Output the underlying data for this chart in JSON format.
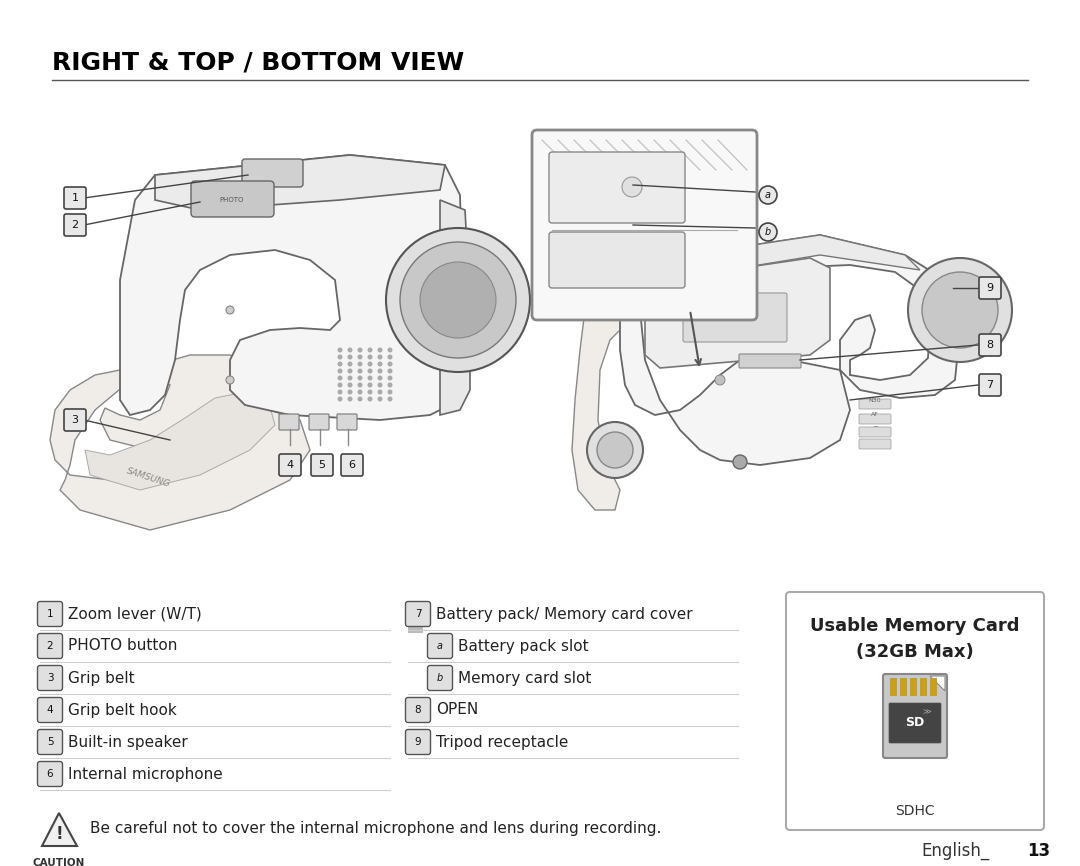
{
  "title": "RIGHT & TOP / BOTTOM VIEW",
  "bg_color": "#ffffff",
  "title_color": "#000000",
  "title_fontsize": 18,
  "left_items": [
    {
      "num": "1",
      "text": "Zoom lever (W/T)"
    },
    {
      "num": "2",
      "text": "PHOTO button"
    },
    {
      "num": "3",
      "text": "Grip belt"
    },
    {
      "num": "4",
      "text": "Grip belt hook"
    },
    {
      "num": "5",
      "text": "Built-in speaker"
    },
    {
      "num": "6",
      "text": "Internal microphone"
    }
  ],
  "right_items": [
    {
      "num": "7",
      "text": "Battery pack/ Memory card cover",
      "indent": false
    },
    {
      "num": "a",
      "text": "Battery pack slot",
      "indent": true
    },
    {
      "num": "b",
      "text": "Memory card slot",
      "indent": true
    },
    {
      "num": "8",
      "text": "OPEN",
      "indent": false
    },
    {
      "num": "9",
      "text": "Tripod receptacle",
      "indent": false
    }
  ],
  "caution_text": "Be careful not to cover the internal microphone and lens during recording.",
  "memory_card_title": "Usable Memory Card",
  "memory_card_subtitle": "(32GB Max)",
  "memory_card_label": "SDHC",
  "footer_text": "English_13",
  "separator_color": "#cccccc",
  "num_box_color": "#aaaaaa",
  "line_color": "#999999",
  "text_color": "#222222"
}
